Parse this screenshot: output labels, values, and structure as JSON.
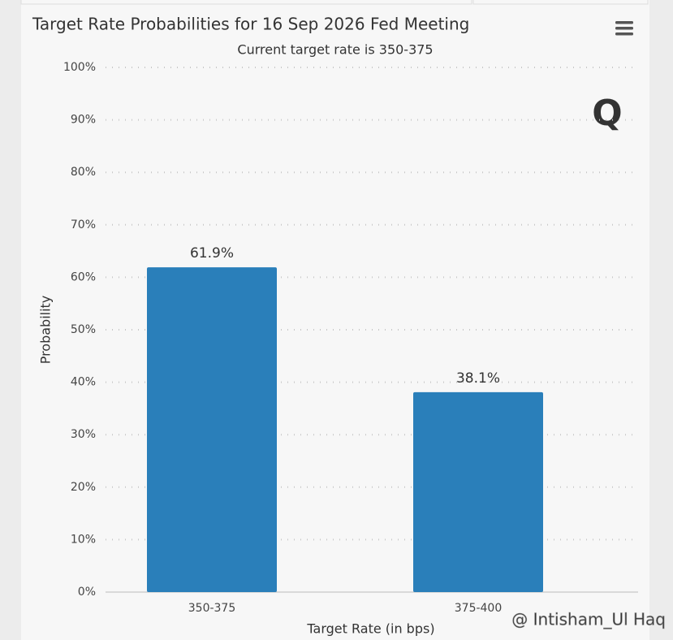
{
  "chart_data": {
    "type": "bar",
    "title": "Target Rate Probabilities for 16 Sep 2026 Fed Meeting",
    "subtitle": "Current target rate is 350-375",
    "x_label": "Target Rate (in bps)",
    "y_label": "Probability",
    "categories": [
      "350-375",
      "375-400"
    ],
    "values": [
      61.9,
      38.1
    ],
    "value_labels": [
      "61.9%",
      "38.1%"
    ],
    "color": "#2a7fba",
    "ylim": [
      0,
      100
    ],
    "yticks": [
      {
        "value": 0,
        "label": "0%"
      },
      {
        "value": 10,
        "label": "10%"
      },
      {
        "value": 20,
        "label": "20%"
      },
      {
        "value": 30,
        "label": "30%"
      },
      {
        "value": 40,
        "label": "40%"
      },
      {
        "value": 50,
        "label": "50%"
      },
      {
        "value": 60,
        "label": "60%"
      },
      {
        "value": 70,
        "label": "70%"
      },
      {
        "value": 80,
        "label": "80%"
      },
      {
        "value": 90,
        "label": "90%"
      },
      {
        "value": 100,
        "label": "100%"
      }
    ],
    "grid": true,
    "watermark": "@ Intisham_Ul Haq"
  }
}
